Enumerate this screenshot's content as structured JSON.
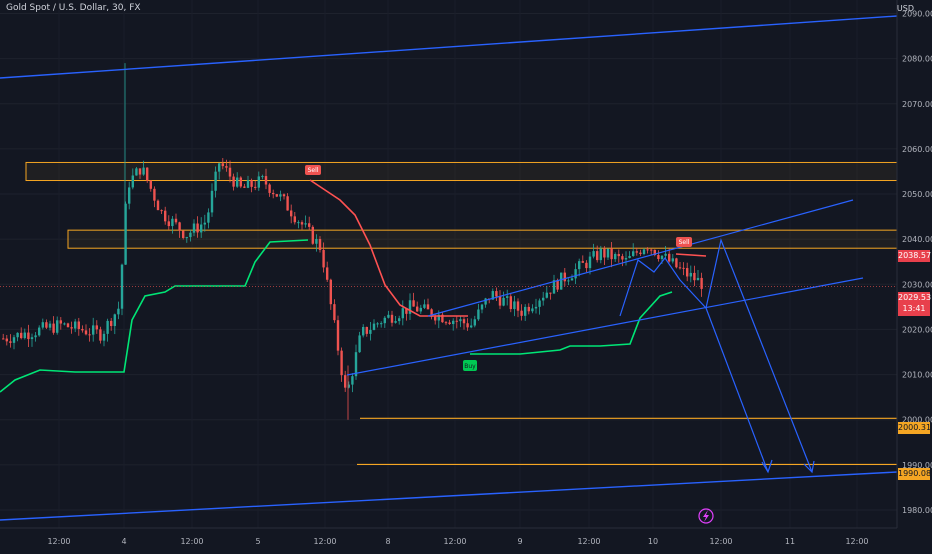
{
  "header": {
    "symbol_title": "Gold Spot / U.S. Dollar, 30, FX",
    "currency": "USD"
  },
  "price_tags": {
    "last_price": "2029.53",
    "countdown": "13:41",
    "level_2038": "2038.57",
    "level_2000": "2000.31",
    "level_1990": "1990.08"
  },
  "signals": {
    "sell_label": "Sell",
    "buy_label": "Buy"
  },
  "colors": {
    "background": "#131722",
    "up_candle": "#26a69a",
    "down_candle": "#ef5350",
    "trend_line": "#2962ff",
    "zone": "#f5a623",
    "supertrend_up": "#00e676",
    "supertrend_down": "#ff5252"
  },
  "chart_data": {
    "type": "candlestick",
    "title": "Gold Spot / U.S. Dollar, 30, FX",
    "y_axis": {
      "unit": "USD",
      "range": [
        1976,
        2093
      ],
      "ticks": [
        2090,
        2080,
        2070,
        2060,
        2050,
        2040,
        2030,
        2020,
        2010,
        2000,
        1990,
        1980
      ]
    },
    "x_axis": {
      "ticks": [
        "12:00",
        "4",
        "12:00",
        "5",
        "12:00",
        "8",
        "12:00",
        "9",
        "12:00",
        "10",
        "12:00",
        "11",
        "12:00"
      ]
    },
    "key_levels": [
      {
        "label": "supply zone upper",
        "range": [
          2053,
          2057
        ]
      },
      {
        "label": "supply zone lower",
        "range": [
          2038,
          2042
        ]
      },
      {
        "label": "2000.31",
        "value": 2000.31
      },
      {
        "label": "1990.08",
        "value": 1990.08
      }
    ],
    "last_price": 2029.53,
    "signals": [
      {
        "type": "Sell",
        "price": 2056
      },
      {
        "type": "Buy",
        "price": 2018
      },
      {
        "type": "Sell",
        "price": 2040
      }
    ],
    "price_path": [
      2018,
      2021,
      2019,
      2025,
      2052,
      2056,
      2046,
      2041,
      2044,
      2057,
      2051,
      2053,
      2049,
      2038,
      2005,
      2019,
      2022,
      2025,
      2023,
      2021,
      2028,
      2024,
      2031,
      2037,
      2035,
      2039,
      2033,
      2029.53
    ],
    "projection_targets": [
      1991,
      1991
    ]
  }
}
